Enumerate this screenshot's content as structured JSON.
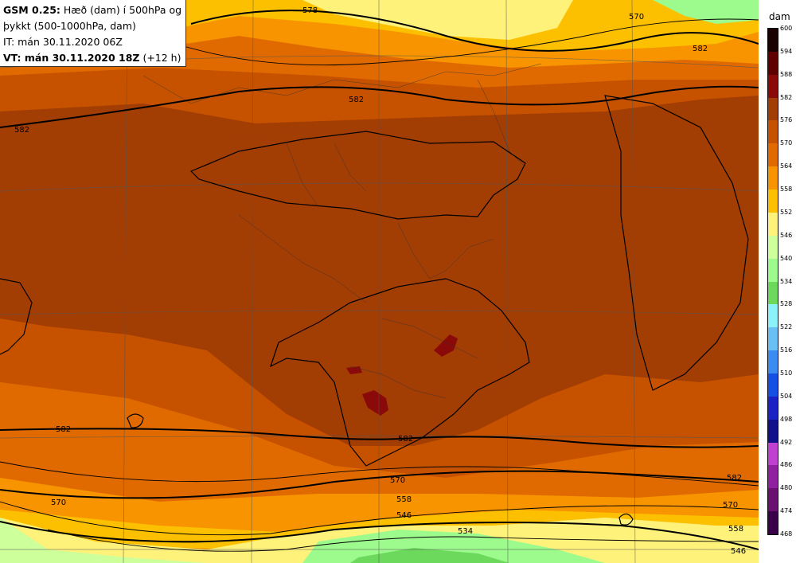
{
  "info": {
    "model": "GSM 0.25:",
    "desc1": " Hæð (dam) í 500hPa og",
    "desc2": "þykkt (500-1000hPa, dam)",
    "issue": "IT: mán 30.11.2020 06Z",
    "valid_bold": "VT: mán 30.11.2020 18Z",
    "valid_rest": " (+12 h)"
  },
  "legend": {
    "unit": "dam",
    "levels": [
      {
        "label": "600",
        "color": "#1a0000"
      },
      {
        "label": "594",
        "color": "#3a0000"
      },
      {
        "label": "588",
        "color": "#5e0000"
      },
      {
        "label": "582",
        "color": "#8a0a0a"
      },
      {
        "label": "576",
        "color": "#a23d04"
      },
      {
        "label": "570",
        "color": "#c65200"
      },
      {
        "label": "564",
        "color": "#e06a00"
      },
      {
        "label": "558",
        "color": "#f79400"
      },
      {
        "label": "552",
        "color": "#fcc000"
      },
      {
        "label": "546",
        "color": "#fff27a"
      },
      {
        "label": "540",
        "color": "#cdff9a"
      },
      {
        "label": "534",
        "color": "#9cfb8c"
      },
      {
        "label": "528",
        "color": "#6cd85c"
      },
      {
        "label": "522",
        "color": "#8af2f8"
      },
      {
        "label": "516",
        "color": "#6ac0f4"
      },
      {
        "label": "510",
        "color": "#3a8cf0"
      },
      {
        "label": "504",
        "color": "#1450e4"
      },
      {
        "label": "498",
        "color": "#1a22c4"
      },
      {
        "label": "492",
        "color": "#10108a"
      },
      {
        "label": "486",
        "color": "#c040d0"
      },
      {
        "label": "480",
        "color": "#9020a0"
      },
      {
        "label": "474",
        "color": "#6a1070"
      },
      {
        "label": "468",
        "color": "#3a0048"
      }
    ]
  },
  "contours": [
    {
      "label": "582"
    },
    {
      "label": "582"
    },
    {
      "label": "582"
    },
    {
      "label": "582"
    },
    {
      "label": "582"
    },
    {
      "label": "582"
    },
    {
      "label": "578"
    },
    {
      "label": "570"
    },
    {
      "label": "570"
    },
    {
      "label": "570"
    },
    {
      "label": "558"
    },
    {
      "label": "558"
    },
    {
      "label": "546"
    },
    {
      "label": "546"
    },
    {
      "label": "534"
    },
    {
      "label": "570"
    }
  ]
}
